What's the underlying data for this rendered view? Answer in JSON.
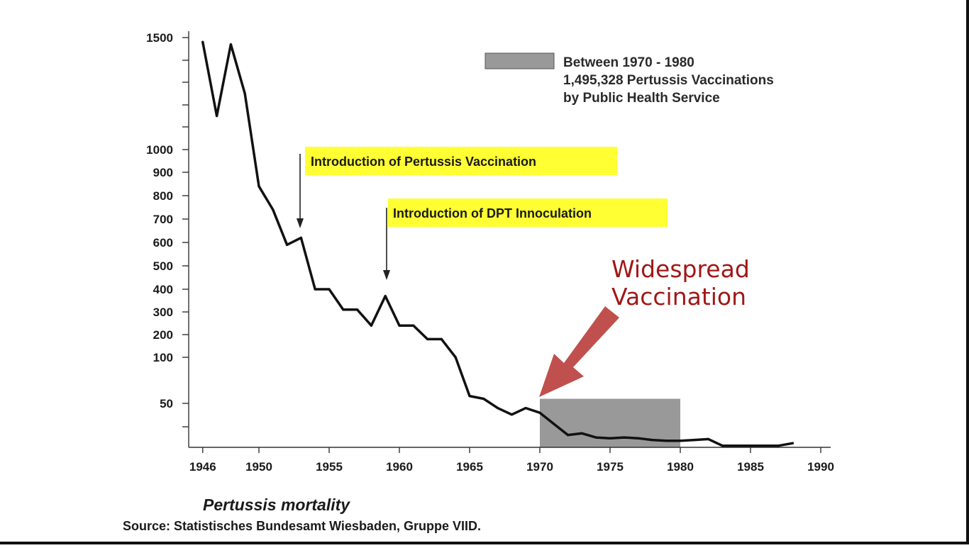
{
  "chart_data": {
    "type": "line",
    "title": "Pertussis mortality",
    "source": "Source: Statistisches Bundesamt Wiesbaden, Gruppe VIID.",
    "xlim": [
      1945,
      1990
    ],
    "y_ticks": [
      {
        "label": "1500",
        "value": 1500
      },
      {
        "label": "1000",
        "value": 1000
      },
      {
        "label": "900",
        "value": 900
      },
      {
        "label": "800",
        "value": 800
      },
      {
        "label": "700",
        "value": 700
      },
      {
        "label": "600",
        "value": 600
      },
      {
        "label": "500",
        "value": 500
      },
      {
        "label": "400",
        "value": 400
      },
      {
        "label": "300",
        "value": 300
      },
      {
        "label": "200",
        "value": 200
      },
      {
        "label": "100",
        "value": 100
      },
      {
        "label": "50",
        "value": 50
      }
    ],
    "y_minor_ticks": [
      1400,
      1300,
      1200,
      1100,
      25
    ],
    "y_floor": 0,
    "x_ticks": [
      1946,
      1950,
      1955,
      1960,
      1965,
      1970,
      1975,
      1980,
      1985,
      1990
    ],
    "series": [
      {
        "color": "#111111",
        "x": [
          1946,
          1947,
          1948,
          1949,
          1950,
          1951,
          1952,
          1953,
          1954,
          1955,
          1956,
          1957,
          1958,
          1959,
          1960,
          1961,
          1962,
          1963,
          1964,
          1965,
          1966,
          1967,
          1968,
          1969,
          1970,
          1971,
          1972,
          1973,
          1974,
          1975,
          1976,
          1977,
          1978,
          1979,
          1980,
          1981,
          1982,
          1983,
          1984,
          1985,
          1986,
          1987,
          1988
        ],
        "y": [
          1480,
          1150,
          1470,
          1250,
          840,
          740,
          590,
          620,
          400,
          400,
          310,
          310,
          240,
          370,
          240,
          240,
          180,
          180,
          100,
          58,
          55,
          45,
          38,
          45,
          40,
          28,
          15,
          17,
          12,
          11,
          12,
          11,
          9,
          8,
          8,
          9,
          10,
          2,
          2,
          2,
          2,
          2,
          5
        ]
      }
    ],
    "shaded_region": {
      "x_start": 1970,
      "x_end": 1980,
      "y_top": 55,
      "color": "#999999"
    },
    "legend": {
      "placement": "top-right",
      "color": "#999999",
      "lines": [
        "Between 1970 - 1980",
        "1,495,328 Pertussis Vaccinations",
        "by Public Health Service"
      ]
    },
    "annotations": [
      {
        "text": "Introduction of Pertussis Vaccination",
        "x": 1953,
        "highlight": "#ffff33"
      },
      {
        "text": "Introduction of DPT Innoculation",
        "x": 1959,
        "highlight": "#ffff33"
      },
      {
        "text_lines": [
          "Widespread",
          "Vaccination"
        ],
        "x": 1970,
        "color": "#a01818",
        "arrow_color": "#c0504d"
      }
    ]
  }
}
